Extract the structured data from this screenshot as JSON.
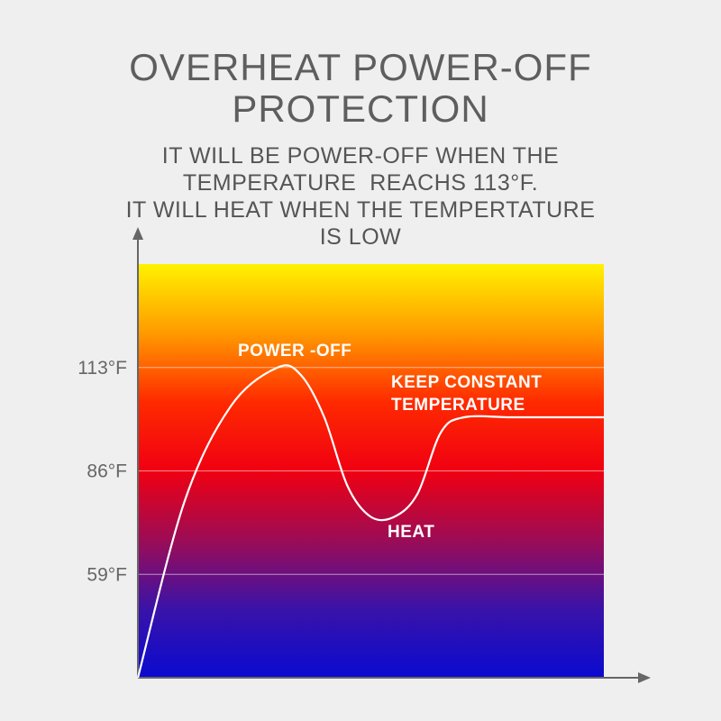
{
  "title_lines": [
    "OVERHEAT POWER-OFF",
    "PROTECTION"
  ],
  "subtitle_lines": [
    "IT WILL BE POWER-OFF WHEN THE",
    "TEMPERATURE  REACHS 113°F.",
    "IT WILL HEAT WHEN THE TEMPERTATURE",
    "IS LOW"
  ],
  "colors": {
    "gradient": [
      "#fff200",
      "#ff9a00",
      "#ff2a00",
      "#f00012",
      "#9c0c55",
      "#3a13a8",
      "#0a0ad0"
    ],
    "curve": "#ffffff",
    "axis": "#666666"
  },
  "chart_data": {
    "type": "line",
    "y_ticks": [
      "113°F",
      "86°F",
      "59°F"
    ],
    "y_tick_values": [
      113,
      86,
      59
    ],
    "ylim": [
      32,
      140
    ],
    "grid": true,
    "annotations": {
      "power_off": "POWER -OFF",
      "keep_constant": [
        "KEEP CONSTANT",
        "TEMPERATURE"
      ],
      "heat": "HEAT"
    },
    "series": [
      {
        "x": [
          0,
          0.1,
          0.2,
          0.3,
          0.35,
          0.4,
          0.45,
          0.5,
          0.55,
          0.6,
          0.65,
          0.7,
          0.8,
          0.9,
          1.0
        ],
        "values": [
          32,
          78,
          103,
          113,
          111,
          100,
          82,
          74,
          74,
          80,
          96,
          100,
          100,
          100,
          100
        ]
      }
    ]
  }
}
